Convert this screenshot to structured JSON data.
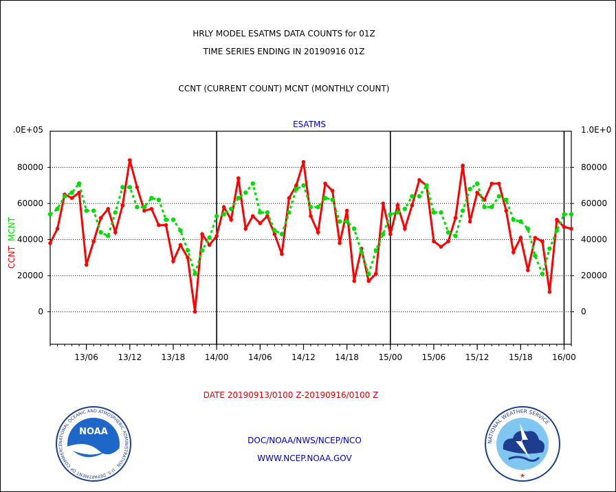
{
  "colors": {
    "ccnt": "#ff0000",
    "mcnt": "#00dd00",
    "text": "#000000",
    "date": "#dd0000",
    "credit": "#0000cc",
    "grid": "#000000"
  },
  "header": {
    "title_line1": "HRLY MODEL ESATMS DATA COUNTS for 01Z",
    "title_line2": "TIME SERIES ENDING IN 20190916 01Z",
    "subtitle": "CCNT (CURRENT COUNT) MCNT (MONTHLY COUNT)"
  },
  "footer": {
    "date_range": "DATE 20190913/0100 Z-20190916/0100 Z",
    "credit_line1": "DOC/NOAA/NWS/NCEP/NCO",
    "credit_line2": "WWW.NCEP.NOAA.GOV"
  },
  "logos": {
    "noaa_text": "NOAA",
    "noaa_ring": "NATIONAL OCEANIC AND ATMOSPHERIC ADMINISTRATION · U.S. DEPARTMENT OF COMMERCE ·",
    "nws_ring": "NATIONAL WEATHER SERVICE"
  },
  "chart_data": {
    "type": "line",
    "title": "ESATMS",
    "ylabel_left_ccnt": "CCNT",
    "ylabel_left_mcnt": "MCNT",
    "ylim": [
      -18000,
      100000
    ],
    "y_ticks": [
      0,
      20000,
      40000,
      60000,
      80000
    ],
    "y_tick_labels": [
      "0",
      "20000",
      "40000",
      "60000",
      "80000"
    ],
    "y_top_label_left": ".0E+05",
    "y_top_label_right": "1.0E+0",
    "grid": true,
    "x_start": "13/01",
    "x_hours_total": 72,
    "x_tick_labels": [
      "13/06",
      "13/12",
      "13/18",
      "14/00",
      "14/06",
      "14/12",
      "14/18",
      "15/00",
      "15/06",
      "15/12",
      "15/18",
      "16/00"
    ],
    "x_tick_hours": [
      5,
      11,
      17,
      23,
      29,
      35,
      41,
      47,
      53,
      59,
      65,
      71
    ],
    "day_boundaries_hours": [
      23,
      47,
      71
    ],
    "series": [
      {
        "name": "CCNT",
        "style": "solid",
        "values": [
          38000,
          46000,
          65000,
          63000,
          66000,
          26000,
          39000,
          52000,
          57000,
          44000,
          59000,
          84000,
          69000,
          56000,
          57000,
          48000,
          48000,
          28000,
          37000,
          30000,
          0,
          43000,
          37000,
          42000,
          58000,
          51000,
          74000,
          46000,
          53000,
          49000,
          53000,
          43000,
          32000,
          63000,
          70000,
          83000,
          53000,
          44000,
          71000,
          67000,
          38000,
          56000,
          17000,
          35000,
          17000,
          21000,
          60000,
          43000,
          59000,
          46000,
          59000,
          73000,
          70000,
          39000,
          36000,
          39000,
          52000,
          81000,
          50000,
          66000,
          62000,
          71000,
          71000,
          56000,
          33000,
          41000,
          23000,
          41000,
          39000,
          11000,
          51000,
          47000,
          46000
        ]
      },
      {
        "name": "MCNT",
        "style": "dotted",
        "values": [
          54000,
          57000,
          64000,
          66000,
          71000,
          56000,
          56000,
          44000,
          42000,
          55000,
          69000,
          69000,
          58000,
          58000,
          63000,
          62000,
          51000,
          51000,
          45000,
          34000,
          21000,
          34000,
          41000,
          53000,
          54000,
          57000,
          63000,
          66000,
          71000,
          55000,
          55000,
          45000,
          43000,
          55000,
          68000,
          70000,
          58000,
          58000,
          63000,
          62000,
          50000,
          50000,
          46000,
          33000,
          21000,
          34000,
          43000,
          54000,
          55000,
          57000,
          64000,
          64000,
          70000,
          55000,
          55000,
          44000,
          42000,
          56000,
          68000,
          71000,
          58000,
          58000,
          64000,
          62000,
          51000,
          50000,
          46000,
          31000,
          21000,
          35000,
          45000,
          54000,
          54000
        ]
      }
    ]
  }
}
